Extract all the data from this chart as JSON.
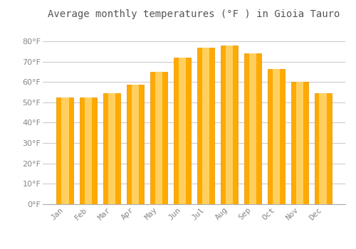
{
  "title": "Average monthly temperatures (°F ) in Gioia Tauro",
  "months": [
    "Jan",
    "Feb",
    "Mar",
    "Apr",
    "May",
    "Jun",
    "Jul",
    "Aug",
    "Sep",
    "Oct",
    "Nov",
    "Dec"
  ],
  "values": [
    52.5,
    52.5,
    54.5,
    58.5,
    65,
    72,
    77,
    78,
    74,
    66.5,
    60,
    54.5
  ],
  "bar_color_main": "#FFAA00",
  "bar_color_edge": "#E89000",
  "background_color": "#FFFFFF",
  "plot_bg_color": "#FFFFFF",
  "grid_color": "#CCCCCC",
  "ylim": [
    0,
    88
  ],
  "yticks": [
    0,
    10,
    20,
    30,
    40,
    50,
    60,
    70,
    80
  ],
  "title_fontsize": 10,
  "tick_fontsize": 8,
  "tick_color": "#888888",
  "title_color": "#555555"
}
